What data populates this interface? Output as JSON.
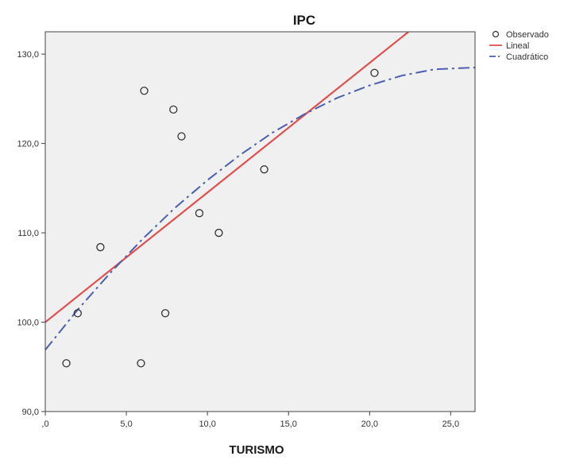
{
  "chart_data": {
    "type": "scatter",
    "title": "IPC",
    "xlabel": "TURISMO",
    "ylabel": "",
    "xlim": [
      0,
      26.5
    ],
    "ylim": [
      90,
      132.5
    ],
    "xticks": [
      0,
      5,
      10,
      15,
      20,
      25
    ],
    "xtick_labels": [
      ",0",
      "5,0",
      "10,0",
      "15,0",
      "20,0",
      "25,0"
    ],
    "yticks": [
      90,
      100,
      110,
      120,
      130
    ],
    "ytick_labels": [
      "90,0",
      "100,0",
      "110,0",
      "120,0",
      "130,0"
    ],
    "grid": false,
    "legend_position": "top-right",
    "background": "#f0f0f0",
    "series": [
      {
        "name": "Observado",
        "kind": "points",
        "marker": "circle-open",
        "color": "#333333",
        "points": [
          [
            1.3,
            95.4
          ],
          [
            2.0,
            101.0
          ],
          [
            3.4,
            108.4
          ],
          [
            5.9,
            95.4
          ],
          [
            6.1,
            125.9
          ],
          [
            7.4,
            101.0
          ],
          [
            7.9,
            123.8
          ],
          [
            8.4,
            120.8
          ],
          [
            9.5,
            112.2
          ],
          [
            10.7,
            110.0
          ],
          [
            13.5,
            117.1
          ],
          [
            20.3,
            127.9
          ]
        ]
      },
      {
        "name": "Lineal",
        "kind": "line",
        "color": "#e05050",
        "style": "solid",
        "x": [
          0,
          22.4
        ],
        "y": [
          100.0,
          132.5
        ]
      },
      {
        "name": "Cuadrático",
        "kind": "line",
        "color": "#4a5fb0",
        "style": "dashdot",
        "x": [
          0,
          2,
          4,
          6,
          8,
          10,
          12,
          14,
          16,
          18,
          20,
          22,
          24,
          26.5
        ],
        "y": [
          96.9,
          101.4,
          105.5,
          109.3,
          112.8,
          115.9,
          118.7,
          121.2,
          123.3,
          125.1,
          126.5,
          127.6,
          128.3,
          128.5
        ]
      }
    ]
  }
}
